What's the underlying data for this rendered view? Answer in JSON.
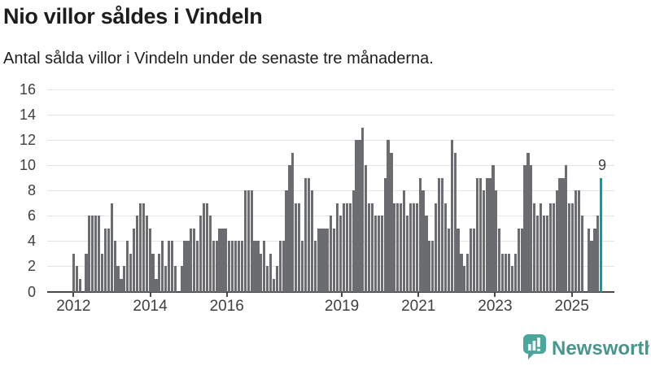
{
  "header": {
    "title": "Nio villor såldes i Vindeln",
    "subtitle": "Antal sålda villor i Vindeln under de senaste tre månaderna."
  },
  "chart_data": {
    "type": "bar",
    "title": "Nio villor såldes i Vindeln",
    "subtitle": "Antal sålda villor i Vindeln under de senaste tre månaderna.",
    "xlabel": "",
    "ylabel": "",
    "ylim": [
      0,
      16
    ],
    "y_ticks": [
      0,
      2,
      4,
      6,
      8,
      10,
      12,
      14,
      16
    ],
    "grid": "horizontal",
    "x_unit": "month",
    "x_tick_labels": [
      {
        "label": "2012",
        "month_index": 0
      },
      {
        "label": "2014",
        "month_index": 24
      },
      {
        "label": "2016",
        "month_index": 48
      },
      {
        "label": "2019",
        "month_index": 84
      },
      {
        "label": "2021",
        "month_index": 108
      },
      {
        "label": "2023",
        "month_index": 132
      },
      {
        "label": "2025",
        "month_index": 156
      }
    ],
    "values": [
      3,
      2,
      1,
      0,
      3,
      6,
      6,
      6,
      6,
      3,
      5,
      5,
      7,
      4,
      2,
      1,
      2,
      4,
      3,
      5,
      6,
      7,
      7,
      6,
      5,
      3,
      1,
      3,
      4,
      2,
      4,
      4,
      2,
      0,
      2,
      4,
      4,
      5,
      5,
      4,
      6,
      7,
      7,
      6,
      4,
      4,
      5,
      5,
      5,
      4,
      4,
      4,
      4,
      4,
      8,
      8,
      8,
      4,
      4,
      3,
      4,
      2,
      3,
      1,
      2,
      4,
      4,
      8,
      10,
      11,
      7,
      7,
      4,
      9,
      9,
      8,
      4,
      5,
      5,
      5,
      5,
      6,
      5,
      7,
      6,
      7,
      7,
      7,
      8,
      12,
      12,
      13,
      10,
      7,
      7,
      6,
      6,
      6,
      9,
      12,
      11,
      7,
      7,
      7,
      8,
      6,
      7,
      7,
      7,
      9,
      8,
      6,
      4,
      4,
      7,
      9,
      9,
      7,
      5,
      12,
      11,
      5,
      3,
      2,
      3,
      5,
      5,
      9,
      9,
      8,
      9,
      9,
      10,
      8,
      5,
      3,
      3,
      3,
      2,
      3,
      5,
      5,
      10,
      11,
      10,
      7,
      6,
      7,
      6,
      6,
      7,
      7,
      8,
      9,
      9,
      10,
      7,
      7,
      8,
      8,
      6,
      0,
      5,
      4,
      5,
      6,
      9
    ],
    "bar_color": "#6b6c70",
    "highlight": {
      "index": "last",
      "value": 9,
      "color": "#00a3a4",
      "label": "9"
    },
    "legend": null
  },
  "annotation": {
    "last_value_label": "9"
  },
  "footer": {
    "brand": "Newsworthy",
    "brand_color": "#47968e",
    "icon_color": "#4ba79c"
  }
}
